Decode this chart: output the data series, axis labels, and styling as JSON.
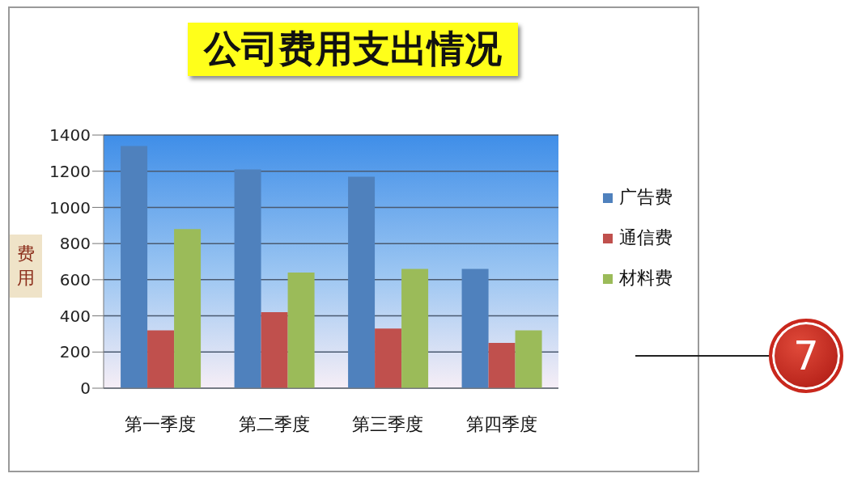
{
  "chart_data": {
    "type": "bar",
    "title": "公司费用支出情况",
    "ylabel": "费用",
    "categories": [
      "第一季度",
      "第二季度",
      "第三季度",
      "第四季度"
    ],
    "series": [
      {
        "name": "广告费",
        "color": "#4f81bd",
        "values": [
          1340,
          1210,
          1170,
          660
        ]
      },
      {
        "name": "通信费",
        "color": "#c0504d",
        "values": [
          320,
          420,
          330,
          250
        ]
      },
      {
        "name": "材料费",
        "color": "#9bbb59",
        "values": [
          880,
          640,
          660,
          320
        ]
      }
    ],
    "ylim": [
      0,
      1400
    ],
    "yticks": [
      0,
      200,
      400,
      600,
      800,
      1000,
      1200,
      1400
    ],
    "grid": "y",
    "legend": "right",
    "annotations": [
      "7"
    ]
  }
}
